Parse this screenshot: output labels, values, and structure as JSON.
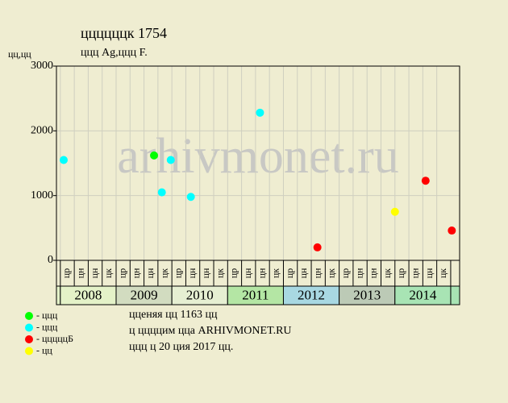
{
  "chart_data": {
    "type": "scatter",
    "title": "ццццццк 1754",
    "subtitle": "ццц Ag,ццц F.",
    "y_label": "цц,цц",
    "watermark": "arhivmonet.ru",
    "xlim": [
      2007.93,
      2015.16
    ],
    "ylim": [
      0,
      3000
    ],
    "yticks": [
      0,
      1000,
      2000,
      3000
    ],
    "grid": true,
    "years": [
      2008,
      2009,
      2010,
      2011,
      2012,
      2013,
      2014
    ],
    "year_colors": [
      "#e4f2c8",
      "#d2dcc0",
      "#e6efd2",
      "#b4e6a4",
      "#a8d8e2",
      "#bccab6",
      "#a8e4b4"
    ],
    "sub_labels": [
      "цр",
      "цн",
      "цн",
      "цк"
    ],
    "series": [
      {
        "name": "- ццц",
        "color": "#00ff00",
        "x": [
          2009.68
        ],
        "values": [
          1620
        ]
      },
      {
        "name": "- ццц",
        "color": "#00ffff",
        "x": [
          2008.06,
          2009.82,
          2009.98,
          2010.34,
          2011.58
        ],
        "values": [
          1550,
          1050,
          1550,
          980,
          2280
        ]
      },
      {
        "name": "- цццццБ",
        "color": "#ff0000",
        "x": [
          2012.61,
          2014.55,
          2015.02
        ],
        "values": [
          200,
          1230,
          460
        ]
      },
      {
        "name": "- цц",
        "color": "#ffff00",
        "x": [
          2014.0
        ],
        "values": [
          750
        ]
      }
    ],
    "notes": [
      "цценяя цц 1163 цц",
      "ц ццццим цца ARHIVMONET.RU",
      "ццц ц 20 ция 2017 цц."
    ]
  }
}
